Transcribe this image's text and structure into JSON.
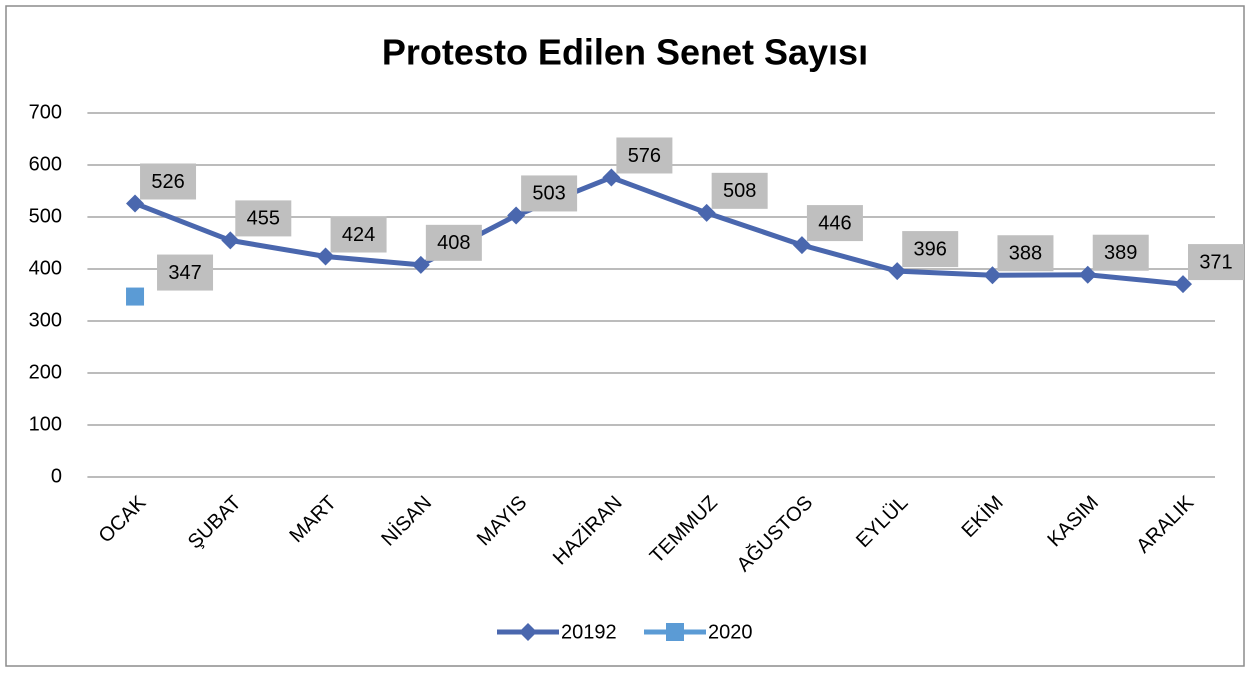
{
  "chart_data": {
    "type": "line",
    "title": "Protesto Edilen Senet Sayısı",
    "categories": [
      "OCAK",
      "ŞUBAT",
      "MART",
      "NİSAN",
      "MAYIS",
      "HAZİRAN",
      "TEMMUZ",
      "AĞUSTOS",
      "EYLÜL",
      "EKİM",
      "KASIM",
      "ARALIK"
    ],
    "series": [
      {
        "name": "20192",
        "color": "#4a67ae",
        "marker": "diamond",
        "values": [
          526,
          455,
          424,
          408,
          503,
          576,
          508,
          446,
          396,
          388,
          389,
          371
        ]
      },
      {
        "name": "2020",
        "color": "#5b9bd5",
        "marker": "square",
        "values": [
          347,
          null,
          null,
          null,
          null,
          null,
          null,
          null,
          null,
          null,
          null,
          null
        ]
      }
    ],
    "ylim": [
      0,
      700
    ],
    "yticks": [
      0,
      100,
      200,
      300,
      400,
      500,
      600,
      700
    ],
    "grid": true,
    "legend": "bottom"
  }
}
